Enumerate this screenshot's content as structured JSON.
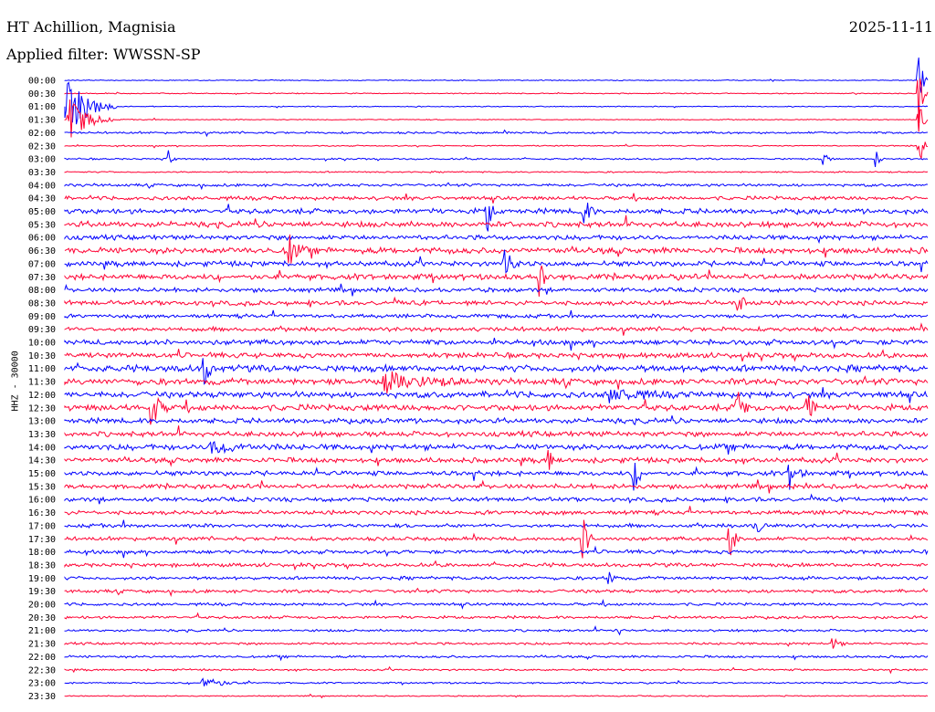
{
  "header": {
    "station": "HT Achillion, Magnisia",
    "filter": "Applied filter: WWSSN-SP",
    "date": "2025-11-11"
  },
  "chart_data": {
    "type": "line",
    "ylabel": "HHZ - 30000",
    "colors": {
      "a": "#0000ff",
      "b": "#ff0033"
    },
    "row_labels": [
      "00:00",
      "00:30",
      "01:00",
      "01:30",
      "02:00",
      "02:30",
      "03:00",
      "03:30",
      "04:00",
      "04:30",
      "05:00",
      "05:30",
      "06:00",
      "06:30",
      "07:00",
      "07:30",
      "08:00",
      "08:30",
      "09:00",
      "09:30",
      "10:00",
      "10:30",
      "11:00",
      "11:30",
      "12:00",
      "12:30",
      "13:00",
      "13:30",
      "14:00",
      "14:30",
      "15:00",
      "15:30",
      "16:00",
      "16:30",
      "17:00",
      "17:30",
      "18:00",
      "18:30",
      "19:00",
      "19:30",
      "20:00",
      "20:30",
      "21:00",
      "21:30",
      "22:00",
      "22:30",
      "23:00",
      "23:30"
    ],
    "row_color": [
      "a",
      "b",
      "a",
      "b",
      "a",
      "b",
      "a",
      "b",
      "a",
      "b",
      "a",
      "b",
      "a",
      "b",
      "a",
      "b",
      "a",
      "b",
      "a",
      "b",
      "a",
      "b",
      "a",
      "b",
      "a",
      "b",
      "a",
      "b",
      "a",
      "b",
      "a",
      "b",
      "a",
      "b",
      "a",
      "b",
      "a",
      "b",
      "a",
      "b",
      "a",
      "b",
      "a",
      "b",
      "a",
      "b",
      "a",
      "b"
    ],
    "noise_level": [
      0.4,
      0.4,
      0.4,
      0.4,
      0.9,
      0.5,
      0.7,
      0.6,
      1.2,
      1.6,
      2.2,
      2.4,
      2.0,
      2.6,
      2.2,
      2.4,
      1.8,
      2.0,
      1.6,
      1.8,
      2.2,
      2.2,
      2.8,
      2.6,
      2.6,
      2.6,
      2.2,
      2.2,
      2.4,
      2.2,
      2.0,
      2.0,
      1.8,
      1.8,
      1.6,
      1.6,
      1.6,
      1.6,
      1.4,
      1.4,
      1.2,
      1.2,
      1.0,
      1.0,
      1.0,
      0.8,
      0.7,
      0.5
    ],
    "events": [
      {
        "row": 2,
        "t": 0.0,
        "amp": 40,
        "dur": 0.06
      },
      {
        "row": 3,
        "t": 0.005,
        "amp": 30,
        "dur": 0.05
      },
      {
        "row": 0,
        "t": 0.99,
        "amp": 45,
        "dur": 0.01
      },
      {
        "row": 1,
        "t": 0.99,
        "amp": 40,
        "dur": 0.01
      },
      {
        "row": 3,
        "t": 0.99,
        "amp": 30,
        "dur": 0.01
      },
      {
        "row": 5,
        "t": 0.99,
        "amp": 35,
        "dur": 0.01
      },
      {
        "row": 6,
        "t": 0.12,
        "amp": 10,
        "dur": 0.01
      },
      {
        "row": 6,
        "t": 0.88,
        "amp": 12,
        "dur": 0.01
      },
      {
        "row": 6,
        "t": 0.94,
        "amp": 12,
        "dur": 0.01
      },
      {
        "row": 10,
        "t": 0.49,
        "amp": 28,
        "dur": 0.01
      },
      {
        "row": 10,
        "t": 0.6,
        "amp": 26,
        "dur": 0.015
      },
      {
        "row": 13,
        "t": 0.26,
        "amp": 20,
        "dur": 0.02
      },
      {
        "row": 14,
        "t": 0.51,
        "amp": 18,
        "dur": 0.02
      },
      {
        "row": 15,
        "t": 0.55,
        "amp": 26,
        "dur": 0.015
      },
      {
        "row": 17,
        "t": 0.78,
        "amp": 16,
        "dur": 0.015
      },
      {
        "row": 22,
        "t": 0.16,
        "amp": 20,
        "dur": 0.02
      },
      {
        "row": 23,
        "t": 0.37,
        "amp": 10,
        "dur": 0.12
      },
      {
        "row": 24,
        "t": 0.63,
        "amp": 8,
        "dur": 0.08
      },
      {
        "row": 25,
        "t": 0.1,
        "amp": 26,
        "dur": 0.02
      },
      {
        "row": 25,
        "t": 0.78,
        "amp": 28,
        "dur": 0.015
      },
      {
        "row": 25,
        "t": 0.86,
        "amp": 24,
        "dur": 0.015
      },
      {
        "row": 28,
        "t": 0.17,
        "amp": 8,
        "dur": 0.08
      },
      {
        "row": 29,
        "t": 0.56,
        "amp": 22,
        "dur": 0.01
      },
      {
        "row": 30,
        "t": 0.66,
        "amp": 26,
        "dur": 0.015
      },
      {
        "row": 30,
        "t": 0.84,
        "amp": 20,
        "dur": 0.02
      },
      {
        "row": 35,
        "t": 0.6,
        "amp": 24,
        "dur": 0.02
      },
      {
        "row": 35,
        "t": 0.77,
        "amp": 24,
        "dur": 0.015
      },
      {
        "row": 34,
        "t": 0.8,
        "amp": 14,
        "dur": 0.015
      },
      {
        "row": 38,
        "t": 0.63,
        "amp": 10,
        "dur": 0.015
      },
      {
        "row": 42,
        "t": 0.64,
        "amp": 8,
        "dur": 0.01
      },
      {
        "row": 43,
        "t": 0.89,
        "amp": 8,
        "dur": 0.015
      },
      {
        "row": 46,
        "t": 0.16,
        "amp": 8,
        "dur": 0.05
      }
    ]
  }
}
